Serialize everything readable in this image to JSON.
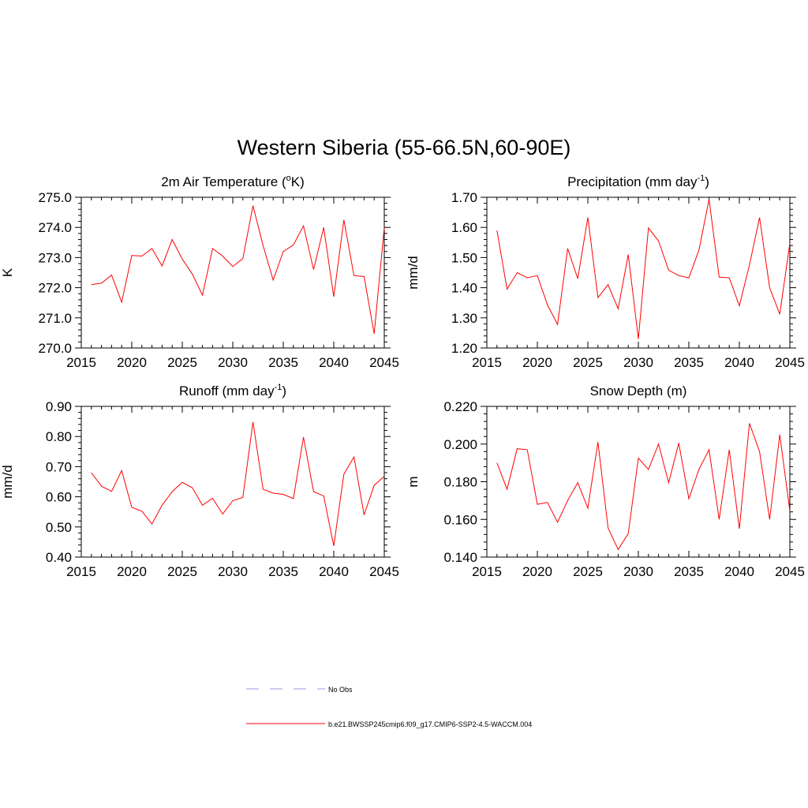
{
  "title": "Western Siberia (55-66.5N,60-90E)",
  "chart_data": [
    {
      "type": "line",
      "title_main": "2m Air Temperature (",
      "title_sup": "o",
      "title_tail": "K)",
      "ylabel": "K",
      "xlabel": "",
      "xlim": [
        2015,
        2045
      ],
      "ylim": [
        270.0,
        275.0
      ],
      "xticks": [
        2015,
        2020,
        2025,
        2030,
        2035,
        2040,
        2045
      ],
      "yticks": [
        "270.0",
        "271.0",
        "272.0",
        "273.0",
        "274.0",
        "275.0"
      ],
      "x": [
        2016,
        2017,
        2018,
        2019,
        2020,
        2021,
        2022,
        2023,
        2024,
        2025,
        2026,
        2027,
        2028,
        2029,
        2030,
        2031,
        2032,
        2033,
        2034,
        2035,
        2036,
        2037,
        2038,
        2039,
        2040,
        2041,
        2042,
        2043,
        2044,
        2045
      ],
      "series": [
        {
          "color": "#ff0000",
          "values": [
            272.1,
            272.15,
            272.42,
            271.52,
            273.07,
            273.05,
            273.3,
            272.72,
            273.6,
            272.95,
            272.45,
            271.75,
            273.3,
            273.05,
            272.7,
            272.97,
            274.72,
            273.4,
            272.25,
            273.2,
            273.42,
            274.05,
            272.6,
            274.0,
            271.7,
            274.25,
            272.4,
            272.37,
            270.47,
            274.0
          ]
        }
      ]
    },
    {
      "type": "line",
      "title_main": "Precipitation (mm day",
      "title_sup": "-1",
      "title_tail": ")",
      "ylabel": "mm/d",
      "xlabel": "",
      "xlim": [
        2015,
        2045
      ],
      "ylim": [
        1.2,
        1.7
      ],
      "xticks": [
        2015,
        2020,
        2025,
        2030,
        2035,
        2040,
        2045
      ],
      "yticks": [
        "1.20",
        "1.30",
        "1.40",
        "1.50",
        "1.60",
        "1.70"
      ],
      "x": [
        2016,
        2017,
        2018,
        2019,
        2020,
        2021,
        2022,
        2023,
        2024,
        2025,
        2026,
        2027,
        2028,
        2029,
        2030,
        2031,
        2032,
        2033,
        2034,
        2035,
        2036,
        2037,
        2038,
        2039,
        2040,
        2041,
        2042,
        2043,
        2044,
        2045
      ],
      "series": [
        {
          "color": "#ff0000",
          "values": [
            1.59,
            1.395,
            1.45,
            1.433,
            1.44,
            1.343,
            1.278,
            1.53,
            1.43,
            1.633,
            1.367,
            1.41,
            1.33,
            1.51,
            1.23,
            1.598,
            1.555,
            1.458,
            1.44,
            1.433,
            1.525,
            1.693,
            1.435,
            1.433,
            1.34,
            1.475,
            1.633,
            1.4,
            1.312,
            1.548
          ]
        }
      ]
    },
    {
      "type": "line",
      "title_main": "Runoff (mm day",
      "title_sup": "-1",
      "title_tail": ")",
      "ylabel": "mm/d",
      "xlabel": "",
      "xlim": [
        2015,
        2045
      ],
      "ylim": [
        0.4,
        0.9
      ],
      "xticks": [
        2015,
        2020,
        2025,
        2030,
        2035,
        2040,
        2045
      ],
      "yticks": [
        "0.40",
        "0.50",
        "0.60",
        "0.70",
        "0.80",
        "0.90"
      ],
      "x": [
        2016,
        2017,
        2018,
        2019,
        2020,
        2021,
        2022,
        2023,
        2024,
        2025,
        2026,
        2027,
        2028,
        2029,
        2030,
        2031,
        2032,
        2033,
        2034,
        2035,
        2036,
        2037,
        2038,
        2039,
        2040,
        2041,
        2042,
        2043,
        2044,
        2045
      ],
      "series": [
        {
          "color": "#ff0000",
          "values": [
            0.68,
            0.635,
            0.618,
            0.687,
            0.565,
            0.552,
            0.51,
            0.572,
            0.617,
            0.648,
            0.63,
            0.572,
            0.595,
            0.543,
            0.587,
            0.598,
            0.848,
            0.625,
            0.612,
            0.608,
            0.594,
            0.798,
            0.617,
            0.603,
            0.437,
            0.675,
            0.732,
            0.54,
            0.638,
            0.668
          ]
        }
      ]
    },
    {
      "type": "line",
      "title_main": "Snow Depth (m)",
      "title_sup": "",
      "title_tail": "",
      "ylabel": "m",
      "xlabel": "",
      "xlim": [
        2015,
        2045
      ],
      "ylim": [
        0.14,
        0.22
      ],
      "xticks": [
        2015,
        2020,
        2025,
        2030,
        2035,
        2040,
        2045
      ],
      "yticks": [
        "0.140",
        "0.160",
        "0.180",
        "0.200",
        "0.220"
      ],
      "x": [
        2016,
        2017,
        2018,
        2019,
        2020,
        2021,
        2022,
        2023,
        2024,
        2025,
        2026,
        2027,
        2028,
        2029,
        2030,
        2031,
        2032,
        2033,
        2034,
        2035,
        2036,
        2037,
        2038,
        2039,
        2040,
        2041,
        2042,
        2043,
        2044,
        2045
      ],
      "series": [
        {
          "color": "#ff0000",
          "values": [
            0.19,
            0.176,
            0.1975,
            0.197,
            0.168,
            0.169,
            0.1585,
            0.17,
            0.1795,
            0.166,
            0.201,
            0.1555,
            0.144,
            0.1525,
            0.1925,
            0.1865,
            0.2,
            0.1795,
            0.2005,
            0.171,
            0.1865,
            0.197,
            0.16,
            0.197,
            0.155,
            0.211,
            0.196,
            0.16,
            0.205,
            0.1645
          ]
        }
      ]
    }
  ],
  "legend": [
    {
      "label": "No Obs",
      "color": "#9999dd",
      "style": "dashed"
    },
    {
      "label": "b.e21.BWSSP245cmip6.f09_g17.CMIP6-SSP2-4.5-WACCM.004",
      "color": "#ff0000",
      "style": "solid"
    }
  ]
}
